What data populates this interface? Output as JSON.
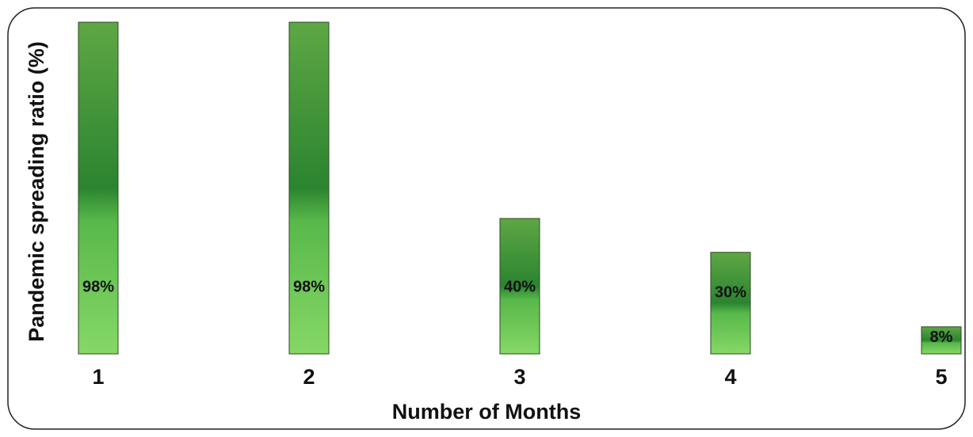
{
  "chart_data": {
    "type": "bar",
    "x_label": "Number of Months",
    "y_label": "Pandemic spreading ratio (%)",
    "categories": [
      "1",
      "2",
      "3",
      "4",
      "5"
    ],
    "values": [
      98,
      98,
      40,
      30,
      8
    ],
    "value_labels": [
      "98%",
      "98%",
      "40%",
      "30%",
      "8%"
    ],
    "ylim": [
      0,
      100
    ]
  }
}
